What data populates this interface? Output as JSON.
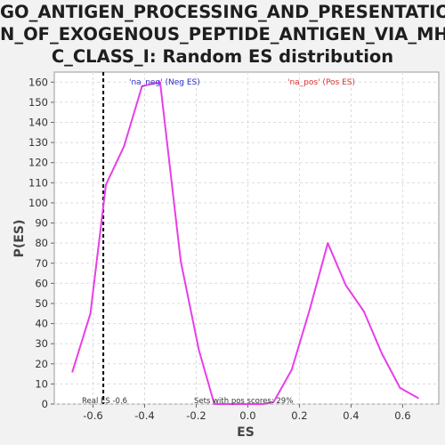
{
  "chart_data": {
    "type": "line",
    "title_lines": [
      "GO_ANTIGEN_PROCESSING_AND_PRESENTATIO",
      "N_OF_EXOGENOUS_PEPTIDE_ANTIGEN_VIA_MH",
      "C_CLASS_I: Random ES distribution"
    ],
    "xlabel": "ES",
    "ylabel": "P(ES)",
    "xlim": [
      -0.75,
      0.74
    ],
    "ylim": [
      0,
      165
    ],
    "xticks": [
      -0.6,
      -0.4,
      -0.2,
      0.0,
      0.2,
      0.4,
      0.6
    ],
    "xtick_labels": [
      "-0.6",
      "-0.4",
      "-0.2",
      "0.0",
      "0.2",
      "0.4",
      "0.6"
    ],
    "yticks": [
      0,
      10,
      20,
      30,
      40,
      50,
      60,
      70,
      80,
      90,
      100,
      110,
      120,
      130,
      140,
      150,
      160
    ],
    "ytick_labels": [
      "0",
      "10",
      "20",
      "30",
      "40",
      "50",
      "60",
      "70",
      "80",
      "90",
      "100",
      "110",
      "120",
      "130",
      "140",
      "150",
      "160"
    ],
    "grid": true,
    "series": [
      {
        "color": "#e83ee8",
        "x": [
          -0.68,
          -0.61,
          -0.55,
          -0.48,
          -0.41,
          -0.34,
          -0.26,
          -0.19,
          -0.13,
          -0.06,
          0.0,
          0.06,
          0.1,
          0.17,
          0.24,
          0.31,
          0.38,
          0.45,
          0.52,
          0.59,
          0.66
        ],
        "y": [
          16,
          45,
          109,
          128,
          158,
          160,
          71,
          27,
          0,
          0,
          0,
          0,
          1,
          17,
          47,
          80,
          59,
          46,
          25,
          8,
          3
        ]
      }
    ],
    "reference_line": {
      "x": -0.56,
      "color": "#000000",
      "style": "dashed"
    },
    "legend_neg": {
      "text": "'na_neg' (Neg ES)",
      "color": "#2d2dcc"
    },
    "legend_pos": {
      "text": "'na_pos' (Pos ES)",
      "color": "#e03030"
    },
    "annotations": {
      "real_es": "Real ES -0.6",
      "pos_scores": "Sets with pos scores: 29%"
    }
  }
}
